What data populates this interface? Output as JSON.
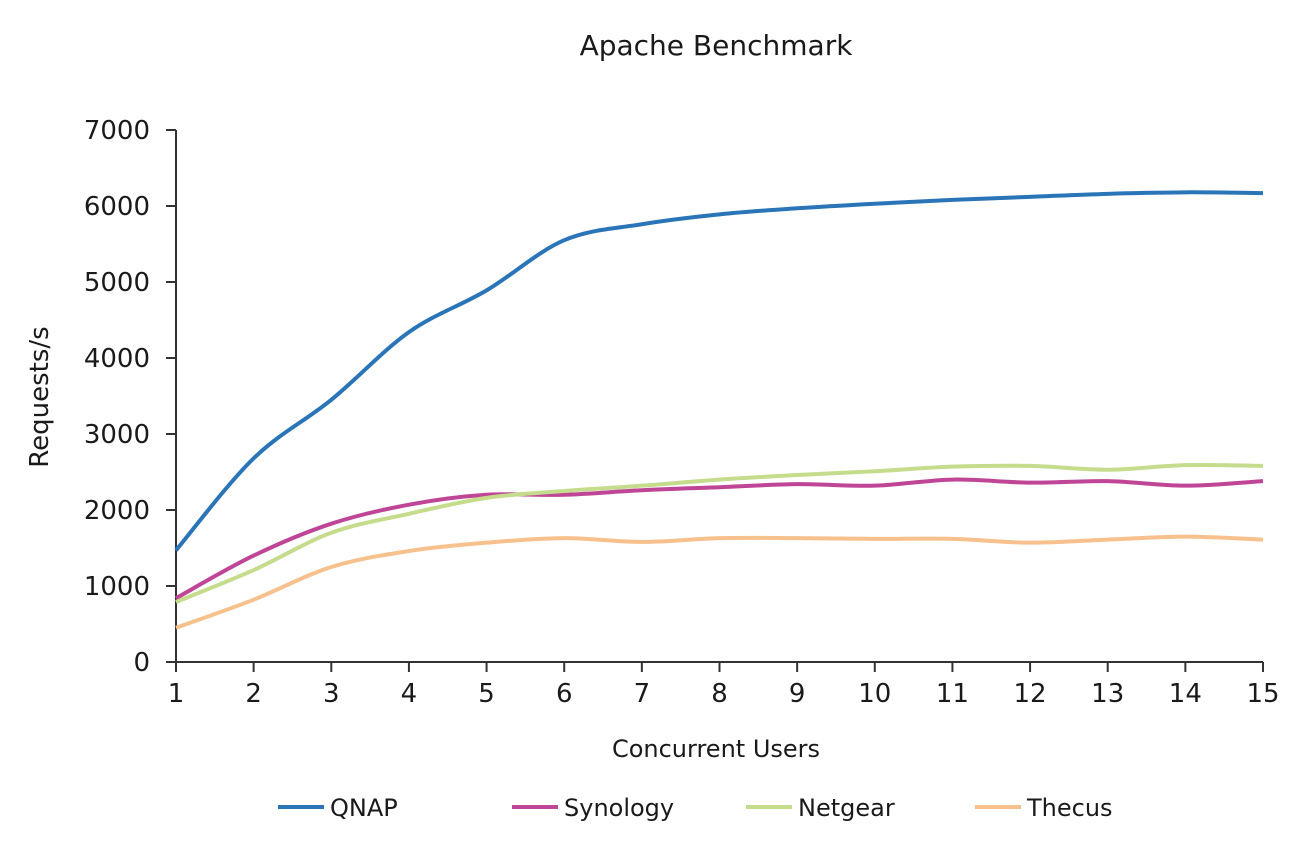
{
  "chart_data": {
    "type": "line",
    "title": "Apache Benchmark",
    "xlabel": "Concurrent Users",
    "ylabel": "Requests/s",
    "x": [
      1,
      2,
      3,
      4,
      5,
      6,
      7,
      8,
      9,
      10,
      11,
      12,
      13,
      14,
      15
    ],
    "xticks": [
      "1",
      "2",
      "3",
      "4",
      "5",
      "6",
      "7",
      "8",
      "9",
      "10",
      "11",
      "12",
      "13",
      "14",
      "15"
    ],
    "yticks": [
      "0",
      "1000",
      "2000",
      "3000",
      "4000",
      "5000",
      "6000",
      "7000"
    ],
    "ylim": [
      0,
      7000
    ],
    "xlim": [
      1,
      15
    ],
    "grid": false,
    "legend_position": "bottom",
    "series": [
      {
        "name": "QNAP",
        "color": "#2a74b8",
        "values": [
          1470,
          2680,
          3450,
          4340,
          4890,
          5550,
          5760,
          5890,
          5970,
          6030,
          6080,
          6120,
          6160,
          6180,
          6170
        ]
      },
      {
        "name": "Synology",
        "color": "#bf4597",
        "values": [
          840,
          1400,
          1820,
          2070,
          2200,
          2200,
          2260,
          2300,
          2340,
          2320,
          2400,
          2360,
          2380,
          2320,
          2380
        ]
      },
      {
        "name": "Netgear",
        "color": "#c5dc8c",
        "values": [
          790,
          1210,
          1700,
          1950,
          2160,
          2250,
          2320,
          2400,
          2460,
          2510,
          2570,
          2580,
          2530,
          2590,
          2580
        ]
      },
      {
        "name": "Thecus",
        "color": "#f6c18c",
        "values": [
          450,
          820,
          1250,
          1460,
          1570,
          1630,
          1580,
          1630,
          1630,
          1620,
          1620,
          1570,
          1610,
          1650,
          1610
        ]
      }
    ]
  }
}
